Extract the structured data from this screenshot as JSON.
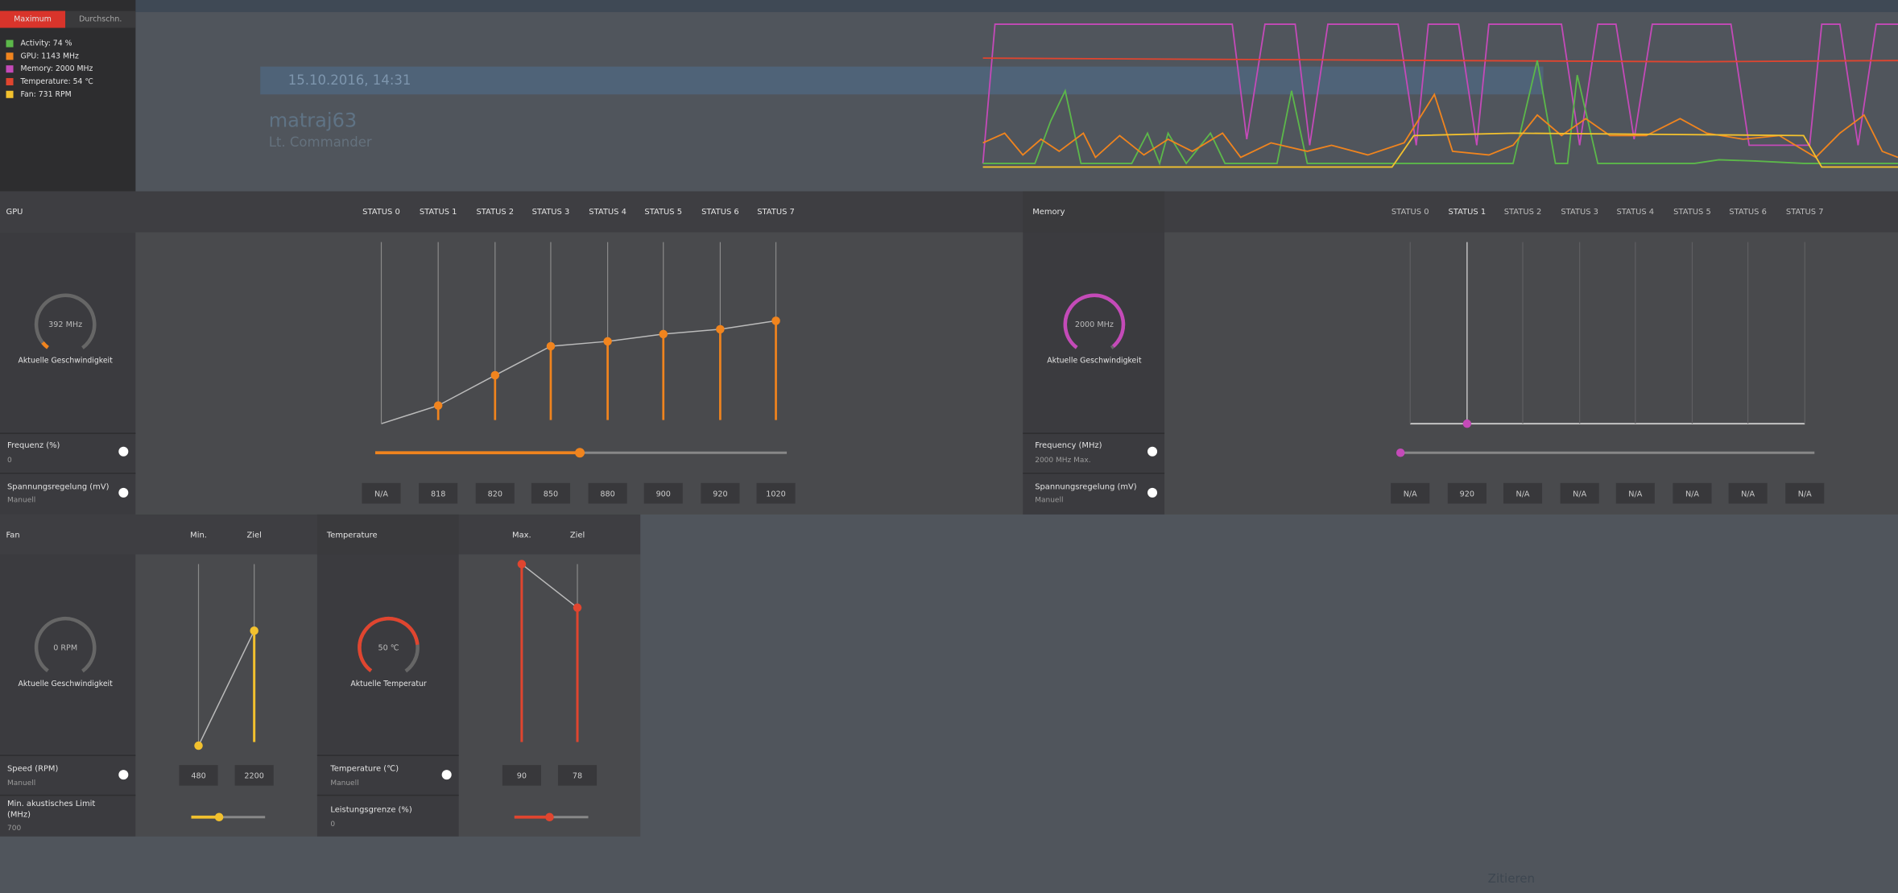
{
  "background": {
    "date": "15.10.2016, 14:31",
    "user": "matraj63",
    "rank": "Lt. Commander",
    "quote": "Zitieren"
  },
  "toolbar": {
    "tabs": [
      "Maximum",
      "Durchschn."
    ]
  },
  "legend": [
    {
      "label": "Activity: 74 %",
      "color": "#5cb84a"
    },
    {
      "label": "GPU: 1143 MHz",
      "color": "#f0841e"
    },
    {
      "label": "Memory: 2000 MHz",
      "color": "#c44ab8"
    },
    {
      "label": "Temperature: 54 ℃",
      "color": "#e0452f"
    },
    {
      "label": "Fan: 731 RPM",
      "color": "#f2c12e"
    }
  ],
  "gpu": {
    "title": "GPU",
    "states": [
      "STATUS 0",
      "STATUS 1",
      "STATUS 2",
      "STATUS 3",
      "STATUS 4",
      "STATUS 5",
      "STATUS 6",
      "STATUS 7"
    ],
    "gauge": "392 MHz",
    "gauge_label": "Aktuelle Geschwindigkeit",
    "frequency": {
      "label": "Frequenz (%)",
      "value": "0"
    },
    "voltage": {
      "label": "Spannungsregelung (mV)",
      "value": "Manuell",
      "states": [
        "N/A",
        818,
        820,
        850,
        880,
        900,
        920,
        1020
      ]
    }
  },
  "memory": {
    "title": "Memory",
    "states": [
      "STATUS 0",
      "STATUS 1",
      "STATUS 2",
      "STATUS 3",
      "STATUS 4",
      "STATUS 5",
      "STATUS 6",
      "STATUS 7"
    ],
    "gauge": "2000 MHz",
    "gauge_label": "Aktuelle Geschwindigkeit",
    "frequency": {
      "label": "Frequency (MHz)",
      "value": "2000 MHz Max."
    },
    "voltage": {
      "label": "Spannungsregelung (mV)",
      "value": "Manuell",
      "states": [
        "N/A",
        920,
        "N/A",
        "N/A",
        "N/A",
        "N/A",
        "N/A",
        "N/A"
      ]
    }
  },
  "fan": {
    "title": "Fan",
    "columns": [
      "Min.",
      "Ziel"
    ],
    "gauge": "0 RPM",
    "gauge_label": "Aktuelle Geschwindigkeit",
    "speed": {
      "label": "Speed (RPM)",
      "value": "Manuell",
      "values": [
        480,
        2200
      ]
    },
    "acoustic": {
      "label": "Min. akustisches Limit",
      "unit": "(MHz)",
      "value": 700
    }
  },
  "temperature": {
    "title": "Temperature",
    "columns": [
      "Max.",
      "Ziel"
    ],
    "gauge": "50 ℃",
    "gauge_label": "Aktuelle Temperatur",
    "temp": {
      "label": "Temperature (℃)",
      "value": "Manuell",
      "values": [
        90,
        78
      ]
    },
    "power": {
      "label": "Leistungsgrenze (%)",
      "value": "0"
    }
  }
}
